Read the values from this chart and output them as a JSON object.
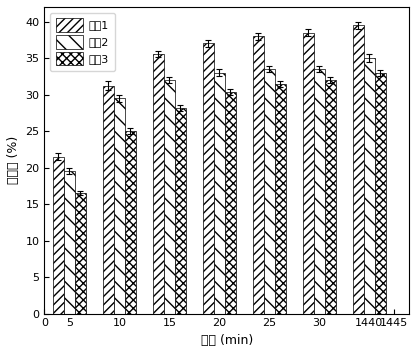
{
  "x_tick_labels": [
    "0",
    "5",
    "10",
    "15",
    "20",
    "25",
    "30",
    "1440",
    "1445"
  ],
  "group_positions": [
    1,
    2,
    3,
    4,
    5,
    6,
    7
  ],
  "group_tick_labels": [
    "5",
    "10",
    "15",
    "20",
    "25",
    "30",
    "1440"
  ],
  "bar_width": 0.22,
  "series": {
    "样品1": {
      "values": [
        21.5,
        31.2,
        35.5,
        37.0,
        38.0,
        38.5,
        39.5
      ],
      "errors": [
        0.5,
        0.6,
        0.4,
        0.5,
        0.5,
        0.5,
        0.5
      ],
      "hatch": "////",
      "facecolor": "#ffffff",
      "edgecolor": "#000000"
    },
    "样品2": {
      "values": [
        19.5,
        29.5,
        32.0,
        33.0,
        33.5,
        33.5,
        35.0
      ],
      "errors": [
        0.4,
        0.5,
        0.4,
        0.5,
        0.4,
        0.4,
        0.5
      ],
      "hatch": "\\\\\\\\",
      "facecolor": "#ffffff",
      "edgecolor": "#000000"
    },
    "样品3": {
      "values": [
        16.5,
        25.0,
        28.2,
        30.4,
        31.5,
        32.0,
        33.0
      ],
      "errors": [
        0.3,
        0.4,
        0.4,
        0.4,
        0.4,
        0.4,
        0.4
      ],
      "hatch": "xxxx",
      "facecolor": "#ffffff",
      "edgecolor": "#000000"
    }
  },
  "xlabel": "时间 (min)",
  "ylabel": "含水量 (%)",
  "ylim": [
    0,
    42
  ],
  "yticks": [
    0,
    5,
    10,
    15,
    20,
    25,
    30,
    35,
    40
  ],
  "axis_fontsize": 9,
  "tick_fontsize": 8,
  "legend_fontsize": 8,
  "background_color": "#ffffff"
}
